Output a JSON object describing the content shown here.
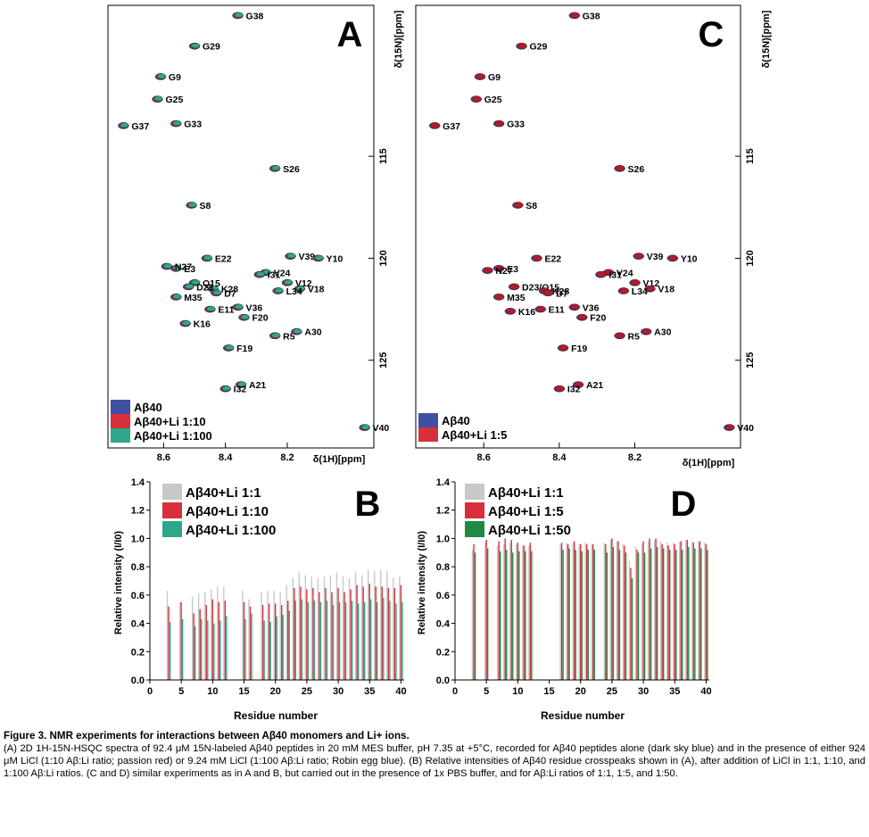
{
  "colors": {
    "blue": "#3f4fa1",
    "red": "#d7303a",
    "teal": "#2ea789",
    "gray": "#c8c8c8",
    "green": "#1e8a45",
    "darkred": "#b41a2e"
  },
  "panels": {
    "A": {
      "letter": "A",
      "ylabel": "δ(15N)[ppm]",
      "xlabel": "δ(1H)[ppm]",
      "legend": [
        "Aβ40",
        "Aβ40+Li 1:10",
        "Aβ40+Li 1:100"
      ]
    },
    "C": {
      "letter": "C",
      "ylabel": "δ(15N)[ppm]",
      "xlabel": "δ(1H)[ppm]",
      "legend": [
        "Aβ40",
        "Aβ40+Li 1:5"
      ]
    },
    "B": {
      "letter": "B",
      "ylabel": "Relative intensity (I/I0)",
      "xlabel": "Residue number",
      "legend": [
        "Aβ40+Li 1:1",
        "Aβ40+Li 1:10",
        "Aβ40+Li 1:100"
      ]
    },
    "D": {
      "letter": "D",
      "ylabel": "Relative intensity (I/I0)",
      "xlabel": "Residue number",
      "legend": [
        "Aβ40+Li 1:1",
        "Aβ40+Li 1:5",
        "Aβ40+Li 1:50"
      ]
    }
  },
  "chart_data": [
    {
      "panel": "A",
      "type": "scatter",
      "xlabel": "δ(1H)[ppm]",
      "ylabel": "δ(15N)[ppm]",
      "xlim": [
        8.78,
        7.92
      ],
      "ylim": [
        107.6,
        129.3
      ],
      "xticks": [
        "8.6",
        "8.4",
        "8.2"
      ],
      "yticks": [
        "115",
        "120",
        "125"
      ],
      "series_names": [
        "Aβ40",
        "Aβ40+Li 1:10",
        "Aβ40+Li 1:100"
      ],
      "peaks": [
        {
          "label": "G38",
          "x": 8.36,
          "y": 108.1
        },
        {
          "label": "G29",
          "x": 8.5,
          "y": 109.6
        },
        {
          "label": "G9",
          "x": 8.61,
          "y": 111.1
        },
        {
          "label": "G25",
          "x": 8.62,
          "y": 112.2
        },
        {
          "label": "G37",
          "x": 8.73,
          "y": 113.5
        },
        {
          "label": "G33",
          "x": 8.56,
          "y": 113.4
        },
        {
          "label": "S26",
          "x": 8.24,
          "y": 115.6
        },
        {
          "label": "S8",
          "x": 8.51,
          "y": 117.4
        },
        {
          "label": "E22",
          "x": 8.46,
          "y": 120.0
        },
        {
          "label": "V39",
          "x": 8.19,
          "y": 119.9
        },
        {
          "label": "Y10",
          "x": 8.1,
          "y": 120.0
        },
        {
          "label": "E3",
          "x": 8.56,
          "y": 120.5
        },
        {
          "label": "N27",
          "x": 8.59,
          "y": 120.4
        },
        {
          "label": "V24",
          "x": 8.27,
          "y": 120.7
        },
        {
          "label": "I31",
          "x": 8.29,
          "y": 120.8
        },
        {
          "label": "V12",
          "x": 8.2,
          "y": 121.2
        },
        {
          "label": "Q15",
          "x": 8.5,
          "y": 121.2
        },
        {
          "label": "K28",
          "x": 8.44,
          "y": 121.5
        },
        {
          "label": "D23",
          "x": 8.52,
          "y": 121.4
        },
        {
          "label": "V18",
          "x": 8.16,
          "y": 121.5
        },
        {
          "label": "D7",
          "x": 8.43,
          "y": 121.7
        },
        {
          "label": "L34",
          "x": 8.23,
          "y": 121.6
        },
        {
          "label": "M35",
          "x": 8.56,
          "y": 121.9
        },
        {
          "label": "V36",
          "x": 8.36,
          "y": 122.4
        },
        {
          "label": "E11",
          "x": 8.45,
          "y": 122.5
        },
        {
          "label": "F20",
          "x": 8.34,
          "y": 122.9
        },
        {
          "label": "K16",
          "x": 8.53,
          "y": 123.2
        },
        {
          "label": "R5",
          "x": 8.24,
          "y": 123.8
        },
        {
          "label": "A30",
          "x": 8.17,
          "y": 123.6
        },
        {
          "label": "F19",
          "x": 8.39,
          "y": 124.4
        },
        {
          "label": "A21",
          "x": 8.35,
          "y": 126.2
        },
        {
          "label": "I32",
          "x": 8.4,
          "y": 126.4
        },
        {
          "label": "V40",
          "x": 7.95,
          "y": 128.3
        }
      ]
    },
    {
      "panel": "C",
      "type": "scatter",
      "xlabel": "δ(1H)[ppm]",
      "ylabel": "δ(15N)[ppm]",
      "xlim": [
        8.78,
        7.92
      ],
      "ylim": [
        107.6,
        129.3
      ],
      "xticks": [
        "8.6",
        "8.4",
        "8.2"
      ],
      "yticks": [
        "115",
        "120",
        "125"
      ],
      "series_names": [
        "Aβ40",
        "Aβ40+Li 1:5"
      ],
      "peaks": [
        {
          "label": "G38",
          "x": 8.36,
          "y": 108.1
        },
        {
          "label": "G29",
          "x": 8.5,
          "y": 109.6
        },
        {
          "label": "G9",
          "x": 8.61,
          "y": 111.1
        },
        {
          "label": "G25",
          "x": 8.62,
          "y": 112.2
        },
        {
          "label": "G37",
          "x": 8.73,
          "y": 113.5
        },
        {
          "label": "G33",
          "x": 8.56,
          "y": 113.4
        },
        {
          "label": "S26",
          "x": 8.24,
          "y": 115.6
        },
        {
          "label": "S8",
          "x": 8.51,
          "y": 117.4
        },
        {
          "label": "E22",
          "x": 8.46,
          "y": 120.0
        },
        {
          "label": "V39",
          "x": 8.19,
          "y": 119.9
        },
        {
          "label": "Y10",
          "x": 8.1,
          "y": 120.0
        },
        {
          "label": "E3",
          "x": 8.56,
          "y": 120.5
        },
        {
          "label": "N27",
          "x": 8.59,
          "y": 120.6
        },
        {
          "label": "V24",
          "x": 8.27,
          "y": 120.7
        },
        {
          "label": "I31",
          "x": 8.29,
          "y": 120.8
        },
        {
          "label": "V12",
          "x": 8.2,
          "y": 121.2
        },
        {
          "label": "D23/Q15",
          "x": 8.52,
          "y": 121.4
        },
        {
          "label": "K28",
          "x": 8.44,
          "y": 121.6
        },
        {
          "label": "D7",
          "x": 8.43,
          "y": 121.7
        },
        {
          "label": "V18",
          "x": 8.16,
          "y": 121.5
        },
        {
          "label": "L34",
          "x": 8.23,
          "y": 121.6
        },
        {
          "label": "M35",
          "x": 8.56,
          "y": 121.9
        },
        {
          "label": "V36",
          "x": 8.36,
          "y": 122.4
        },
        {
          "label": "E11",
          "x": 8.45,
          "y": 122.5
        },
        {
          "label": "K16",
          "x": 8.53,
          "y": 122.6
        },
        {
          "label": "F20",
          "x": 8.34,
          "y": 122.9
        },
        {
          "label": "R5",
          "x": 8.24,
          "y": 123.8
        },
        {
          "label": "A30",
          "x": 8.17,
          "y": 123.6
        },
        {
          "label": "F19",
          "x": 8.39,
          "y": 124.4
        },
        {
          "label": "A21",
          "x": 8.35,
          "y": 126.2
        },
        {
          "label": "I32",
          "x": 8.4,
          "y": 126.4
        },
        {
          "label": "V40",
          "x": 7.95,
          "y": 128.3
        }
      ]
    },
    {
      "panel": "B",
      "type": "bar",
      "xlabel": "Residue number",
      "ylabel": "Relative intensity (I/I0)",
      "xlim": [
        0,
        40.5
      ],
      "ylim": [
        0,
        1.4
      ],
      "xticks": [
        0,
        5,
        10,
        15,
        20,
        25,
        30,
        35,
        40
      ],
      "yticks": [
        0,
        0.2,
        0.4,
        0.6,
        0.8,
        1.0,
        1.2,
        1.4
      ],
      "categories": [
        3,
        5,
        7,
        8,
        9,
        10,
        11,
        12,
        15,
        16,
        18,
        19,
        20,
        21,
        22,
        23,
        24,
        25,
        26,
        27,
        28,
        29,
        30,
        31,
        32,
        33,
        34,
        35,
        36,
        37,
        38,
        39,
        40
      ],
      "series": [
        {
          "name": "Aβ40+Li 1:1",
          "values": [
            0.63,
            0.55,
            0.59,
            0.61,
            0.62,
            0.64,
            0.66,
            0.66,
            0.63,
            0.57,
            0.62,
            0.63,
            0.63,
            0.62,
            0.67,
            0.72,
            0.76,
            0.74,
            0.73,
            0.72,
            0.73,
            0.74,
            0.76,
            0.73,
            0.72,
            0.76,
            0.74,
            0.78,
            0.77,
            0.78,
            0.77,
            0.72,
            0.73
          ]
        },
        {
          "name": "Aβ40+Li 1:10",
          "values": [
            0.52,
            0.55,
            0.47,
            0.5,
            0.53,
            0.57,
            0.55,
            0.56,
            0.55,
            0.52,
            0.53,
            0.54,
            0.54,
            0.53,
            0.56,
            0.65,
            0.66,
            0.64,
            0.65,
            0.62,
            0.65,
            0.62,
            0.65,
            0.62,
            0.64,
            0.67,
            0.66,
            0.68,
            0.66,
            0.66,
            0.65,
            0.65,
            0.67
          ]
        },
        {
          "name": "Aβ40+Li 1:100",
          "values": [
            0.41,
            0.43,
            0.38,
            0.43,
            0.42,
            0.4,
            0.42,
            0.45,
            0.43,
            0.47,
            0.42,
            0.41,
            0.45,
            0.46,
            0.49,
            0.56,
            0.57,
            0.55,
            0.56,
            0.55,
            0.56,
            0.53,
            0.55,
            0.55,
            0.56,
            0.54,
            0.55,
            0.57,
            0.55,
            0.58,
            0.56,
            0.54,
            0.55
          ]
        }
      ]
    },
    {
      "panel": "D",
      "type": "bar",
      "xlabel": "Residue number",
      "ylabel": "Relative intensity (I/I0)",
      "xlim": [
        0,
        40.5
      ],
      "ylim": [
        0,
        1.4
      ],
      "xticks": [
        0,
        5,
        10,
        15,
        20,
        25,
        30,
        35,
        40
      ],
      "yticks": [
        0,
        0.2,
        0.4,
        0.6,
        0.8,
        1.0,
        1.2,
        1.4
      ],
      "categories": [
        3,
        5,
        7,
        8,
        9,
        10,
        11,
        12,
        17,
        18,
        19,
        20,
        21,
        22,
        24,
        25,
        26,
        27,
        28,
        29,
        30,
        31,
        32,
        33,
        34,
        35,
        36,
        37,
        38,
        39,
        40
      ],
      "series": [
        {
          "name": "Aβ40+Li 1:1",
          "values": [
            0.92,
            0.97,
            0.95,
            0.96,
            0.97,
            0.96,
            0.95,
            0.95,
            0.96,
            0.97,
            0.97,
            0.96,
            0.97,
            0.96,
            0.97,
            0.99,
            0.98,
            0.96,
            0.84,
            0.94,
            0.96,
            0.98,
            0.99,
            0.98,
            0.97,
            0.97,
            0.98,
            0.99,
            0.98,
            0.98,
            0.97
          ]
        },
        {
          "name": "Aβ40+Li 1:5",
          "values": [
            0.96,
            0.99,
            0.98,
            1.0,
            0.99,
            0.97,
            0.95,
            0.97,
            0.97,
            0.96,
            0.98,
            0.96,
            0.96,
            0.96,
            0.96,
            1.0,
            0.98,
            0.95,
            0.79,
            0.92,
            0.98,
            1.0,
            1.0,
            0.96,
            0.95,
            0.96,
            0.98,
            0.99,
            0.97,
            0.98,
            0.96
          ]
        },
        {
          "name": "Aβ40+Li 1:50",
          "values": [
            0.9,
            0.93,
            0.91,
            0.92,
            0.9,
            0.91,
            0.91,
            0.91,
            0.92,
            0.93,
            0.92,
            0.91,
            0.92,
            0.92,
            0.9,
            0.94,
            0.92,
            0.9,
            0.72,
            0.9,
            0.9,
            0.93,
            0.94,
            0.93,
            0.92,
            0.92,
            0.92,
            0.94,
            0.93,
            0.93,
            0.92
          ]
        }
      ]
    }
  ],
  "caption": {
    "title": "Figure 3. NMR experiments for interactions between Aβ40 monomers and Li+ ions.",
    "body": "(A) 2D 1H-15N-HSQC spectra of 92.4 μM 15N-labeled Aβ40 peptides in 20 mM MES buffer, pH 7.35 at +5°C, recorded for Aβ40 peptides alone (dark sky blue) and in the presence of either 924 μM LiCl (1:10 Aβ:Li ratio; passion red) or 9.24 mM LiCl (1:100 Aβ:Li ratio; Robin egg blue). (B) Relative intensities of Aβ40 residue crosspeaks shown in (A), after addition of LiCl in 1:1, 1:10, and 1:100 Aβ:Li ratios. (C and D) similar experiments as in A and B, but carried out in the presence of 1x PBS buffer, and for Aβ:Li ratios of 1:1, 1:5, and 1:50."
  }
}
